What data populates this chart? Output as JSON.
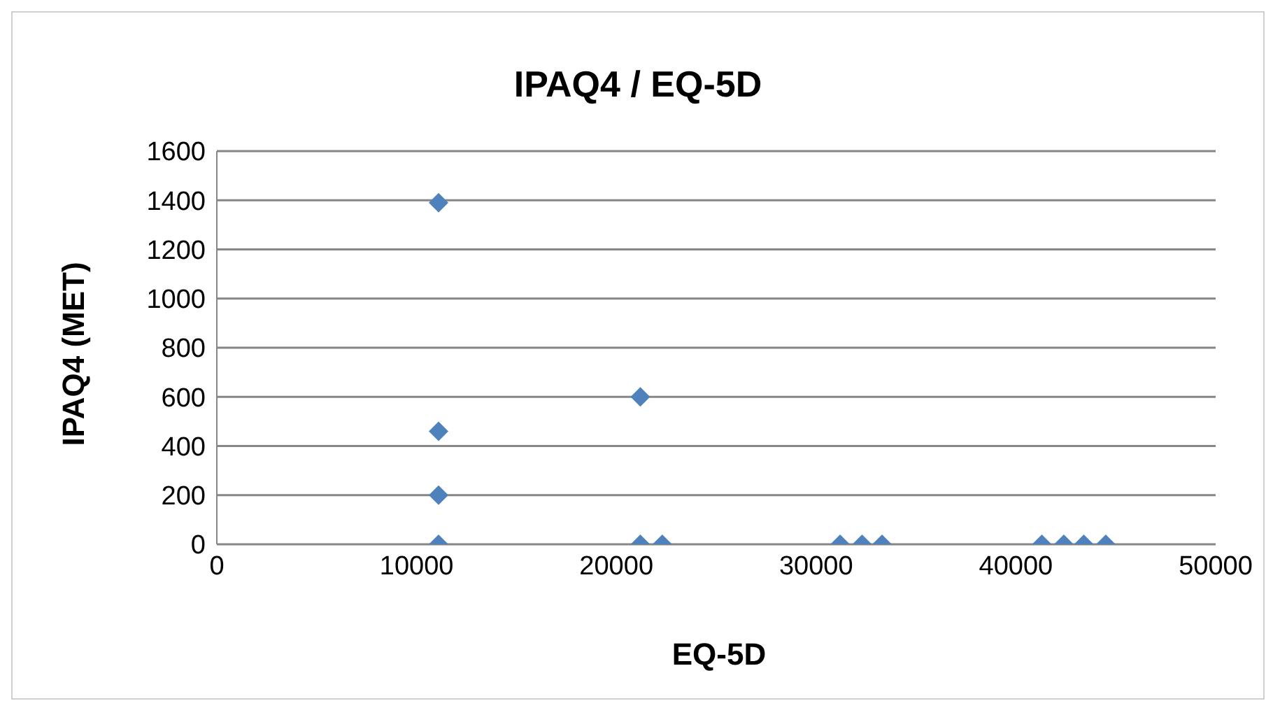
{
  "chart_data": {
    "type": "scatter",
    "title": "IPAQ4 / EQ-5D",
    "xlabel": "EQ-5D",
    "ylabel": "IPAQ4 (MET)",
    "series": [
      {
        "color": "#4f81bd",
        "x": [
          11100,
          11100,
          11100,
          11100,
          21200,
          21200,
          22300,
          31200,
          32300,
          33300,
          41300,
          42400,
          43400,
          44500
        ],
        "values": [
          1390,
          460,
          200,
          0,
          600,
          0,
          0,
          0,
          0,
          0,
          0,
          0,
          0,
          0
        ]
      }
    ],
    "xlim": [
      0,
      50000
    ],
    "xticks": [
      0,
      10000,
      20000,
      30000,
      40000,
      50000
    ],
    "ylim": [
      0,
      1600
    ],
    "yticks": [
      0,
      200,
      400,
      600,
      800,
      1000,
      1200,
      1400,
      1600
    ],
    "grid": "y",
    "marker": "diamond"
  }
}
